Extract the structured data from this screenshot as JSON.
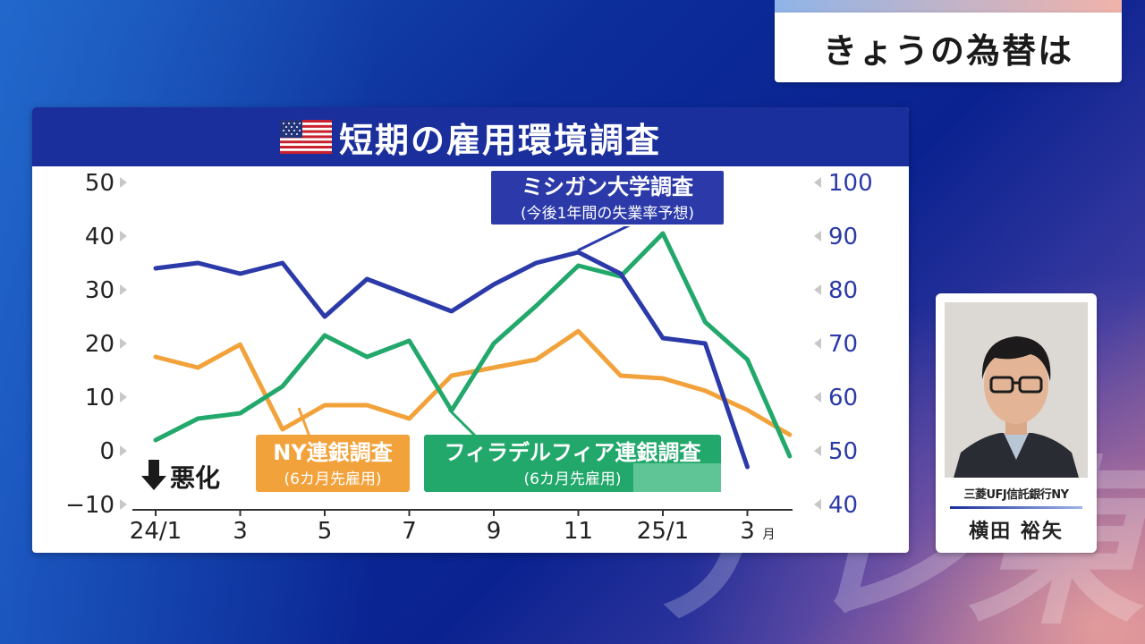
{
  "topic": {
    "text": "きょうの為替は"
  },
  "chart_data": {
    "type": "line",
    "title": "短期の雇用環境調査",
    "x_ticks": [
      "24/1",
      "3",
      "5",
      "7",
      "9",
      "11",
      "25/1",
      "3"
    ],
    "x_unit": "月",
    "y_left": {
      "ticks": [
        "50",
        "40",
        "30",
        "20",
        "10",
        "0",
        "−10"
      ],
      "range": [
        -10,
        50
      ]
    },
    "y_right": {
      "ticks": [
        "100",
        "90",
        "80",
        "70",
        "60",
        "50",
        "40"
      ],
      "range": [
        40,
        100
      ]
    },
    "direction_note": "悪化",
    "series": [
      {
        "name": "ミシガン大学調査",
        "subname": "(今後1年間の失業率予想)",
        "axis": "right",
        "color": "#2b3aa8",
        "x": [
          1,
          2,
          3,
          4,
          5,
          6,
          7,
          8,
          9,
          10,
          11,
          12,
          13,
          14,
          15
        ],
        "values": [
          84,
          85,
          83,
          85,
          75,
          82,
          79,
          76,
          81,
          85,
          87,
          83,
          71,
          70,
          47
        ]
      },
      {
        "name": "NY連銀調査",
        "subname": "(6カ月先雇用)",
        "axis": "left",
        "color": "#f2a23a",
        "x": [
          1,
          2,
          3,
          4,
          5,
          6,
          7,
          8,
          9,
          10,
          11,
          12,
          13,
          14,
          15,
          16
        ],
        "values": [
          17.5,
          15.5,
          19.8,
          4,
          8.5,
          8.5,
          6,
          14,
          15.5,
          17,
          22.3,
          14,
          13.5,
          11.2,
          7.6,
          3
        ]
      },
      {
        "name": "フィラデルフィア連銀調査",
        "subname": "(6カ月先雇用)",
        "axis": "left",
        "color": "#22a86b",
        "x": [
          1,
          2,
          3,
          4,
          5,
          6,
          7,
          8,
          9,
          10,
          11,
          12,
          13,
          14,
          15,
          16
        ],
        "values": [
          2,
          6,
          7,
          12,
          21.5,
          17.5,
          20.5,
          7.5,
          20,
          27,
          34.5,
          32.5,
          40.5,
          24,
          17,
          -1
        ]
      }
    ]
  },
  "presenter": {
    "org": "三菱UFJ信託銀行NY",
    "name": "横田 裕矢"
  },
  "watermark": {
    "text": "テレ東"
  }
}
